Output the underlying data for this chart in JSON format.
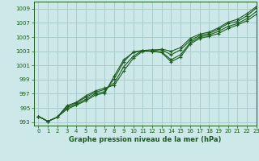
{
  "title": "Graphe pression niveau de la mer (hPa)",
  "background_color": "#cce8e8",
  "grid_color": "#aacccc",
  "line_color": "#1a5c1a",
  "xlim": [
    -0.5,
    23
  ],
  "ylim": [
    992.5,
    1010
  ],
  "yticks": [
    993,
    995,
    997,
    999,
    1001,
    1003,
    1005,
    1007,
    1009
  ],
  "xticks": [
    0,
    1,
    2,
    3,
    4,
    5,
    6,
    7,
    8,
    9,
    10,
    11,
    12,
    13,
    14,
    15,
    16,
    17,
    18,
    19,
    20,
    21,
    22,
    23
  ],
  "series": [
    [
      993.8,
      993.1,
      993.7,
      995.2,
      995.7,
      996.5,
      997.2,
      997.6,
      998.5,
      1000.8,
      1002.3,
      1003.1,
      1003.2,
      1003.2,
      1002.5,
      1003.2,
      1004.5,
      1005.2,
      1005.5,
      1006.1,
      1006.9,
      1007.2,
      1008.0,
      1009.1
    ],
    [
      993.8,
      993.1,
      993.7,
      994.8,
      995.4,
      996.0,
      996.8,
      997.1,
      999.5,
      1001.8,
      1002.8,
      1003.1,
      1003.0,
      1002.8,
      1001.5,
      1002.2,
      1004.0,
      1004.8,
      1005.1,
      1005.5,
      1006.2,
      1006.7,
      1007.3,
      1008.2
    ],
    [
      993.8,
      993.1,
      993.7,
      995.0,
      995.5,
      996.2,
      997.0,
      997.3,
      999.1,
      1001.5,
      1002.9,
      1003.1,
      1003.0,
      1002.9,
      1001.8,
      1002.5,
      1004.2,
      1005.0,
      1005.3,
      1005.8,
      1006.5,
      1006.9,
      1007.6,
      1008.6
    ],
    [
      993.8,
      993.1,
      993.7,
      995.3,
      995.8,
      996.7,
      997.4,
      997.8,
      998.2,
      1000.2,
      1002.0,
      1003.0,
      1003.0,
      1003.3,
      1003.0,
      1003.5,
      1004.8,
      1005.4,
      1005.7,
      1006.3,
      1007.1,
      1007.5,
      1008.3,
      1009.3
    ]
  ]
}
